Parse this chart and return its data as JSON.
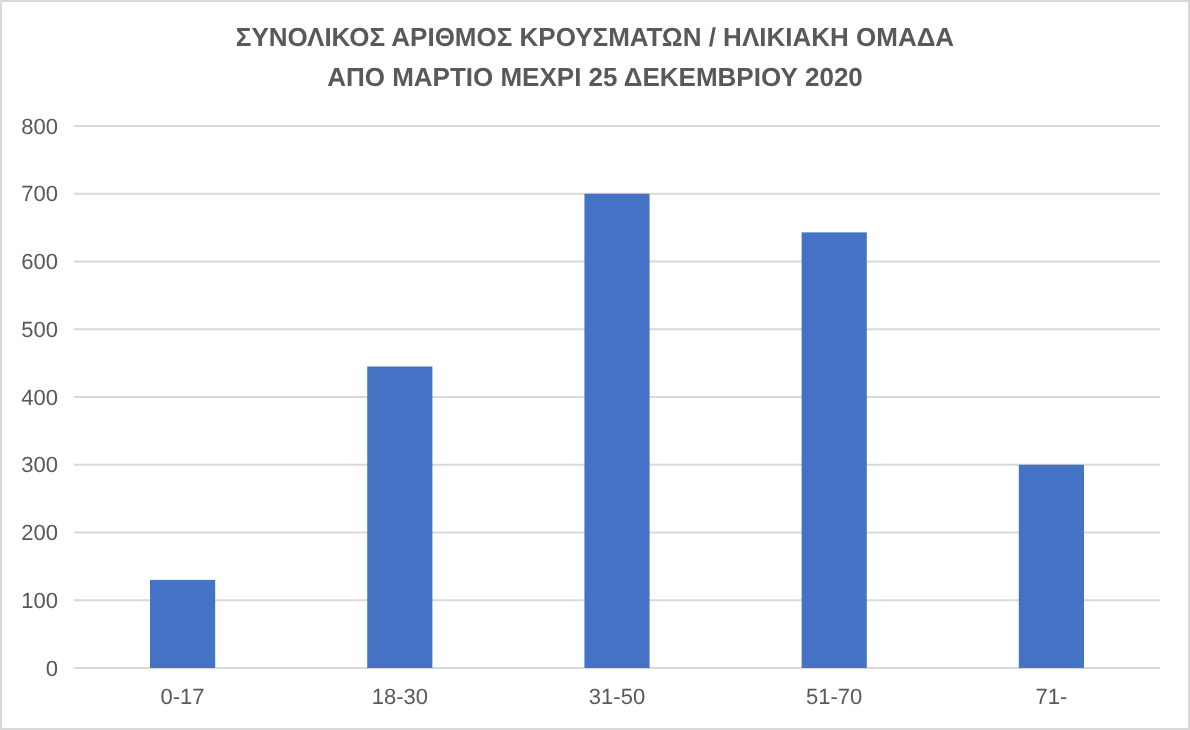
{
  "chart_data": {
    "type": "bar",
    "title": "ΣΥΝΟΛΙΚΟΣ ΑΡΙΘΜΟΣ ΚΡΟΥΣΜΑΤΩΝ / ΗΛΙΚΙΑΚΗ ΟΜΑΔΑ",
    "subtitle": "ΑΠΟ ΜΑΡΤΙΟ ΜΕΧΡΙ 25 ΔΕΚΕΜΒΡΙΟΥ 2020",
    "categories": [
      "0-17",
      "18-30",
      "31-50",
      "51-70",
      "71-"
    ],
    "values": [
      130,
      445,
      700,
      643,
      300
    ],
    "color": "#4472c4",
    "ylim": [
      0,
      800
    ],
    "yticks": [
      0,
      100,
      200,
      300,
      400,
      500,
      600,
      700,
      800
    ],
    "grid": "y"
  }
}
